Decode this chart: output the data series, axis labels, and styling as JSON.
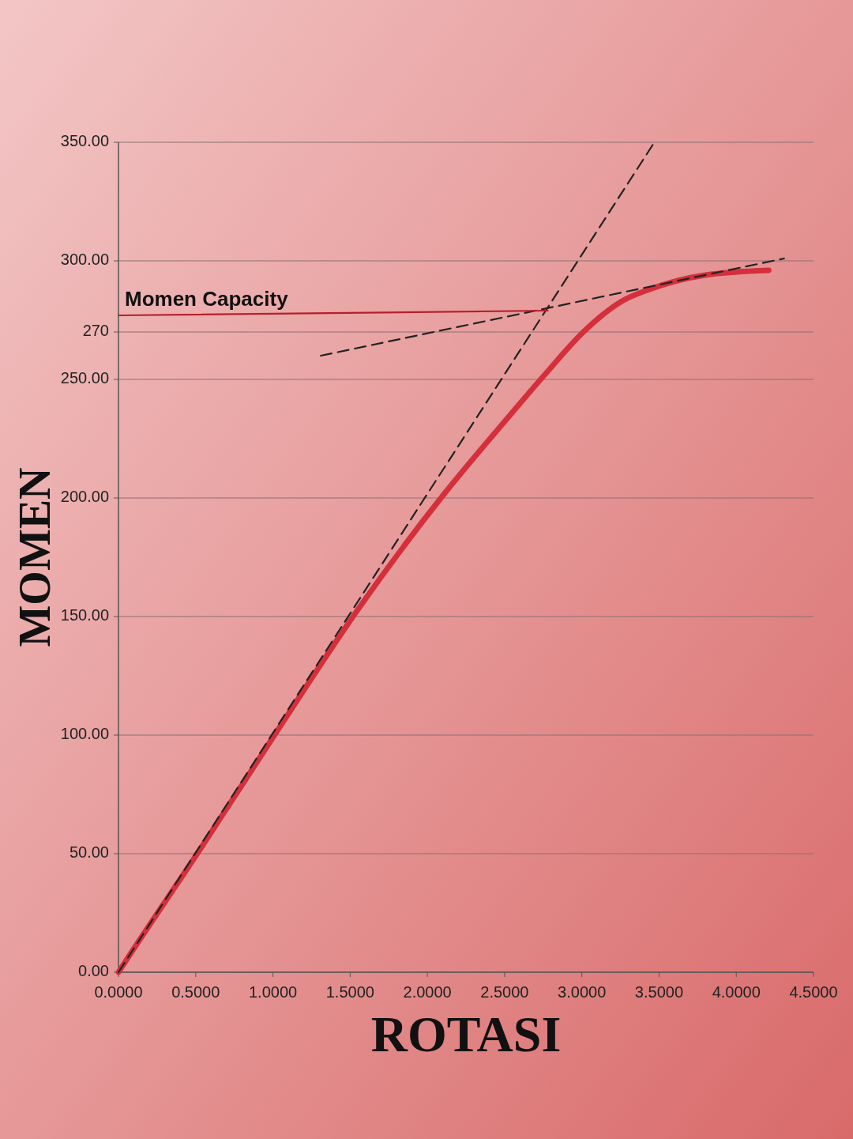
{
  "chart_data": {
    "type": "line",
    "xlabel": "ROTASI",
    "ylabel": "MOMEN",
    "xlim": [
      0,
      4.5
    ],
    "ylim": [
      0,
      350
    ],
    "xticks": [
      {
        "value": 0,
        "label": "0.0000"
      },
      {
        "value": 0.5,
        "label": "0.5000"
      },
      {
        "value": 1,
        "label": "1.0000"
      },
      {
        "value": 1.5,
        "label": "1.5000"
      },
      {
        "value": 2,
        "label": "2.0000"
      },
      {
        "value": 2.5,
        "label": "2.5000"
      },
      {
        "value": 3,
        "label": "3.0000"
      },
      {
        "value": 3.5,
        "label": "3.5000"
      },
      {
        "value": 4,
        "label": "4.0000"
      },
      {
        "value": 4.5,
        "label": "4.5000"
      }
    ],
    "yticks": [
      {
        "value": 0,
        "label": "0.00"
      },
      {
        "value": 50,
        "label": "50.00"
      },
      {
        "value": 100,
        "label": "100.00"
      },
      {
        "value": 150,
        "label": "150.00"
      },
      {
        "value": 200,
        "label": "200.00"
      },
      {
        "value": 250,
        "label": "250.00"
      },
      {
        "value": 270,
        "label": "270"
      },
      {
        "value": 300,
        "label": "300.00"
      },
      {
        "value": 350,
        "label": "350.00"
      }
    ],
    "grid": "y",
    "marker": "none",
    "series": [
      {
        "color": "#d42f3b",
        "line_style": "solid",
        "x": [
          0,
          0.07,
          0.52,
          1.02,
          1.54,
          2.1,
          2.51,
          2.76,
          3.01,
          3.26,
          3.44,
          3.8,
          4.21
        ],
        "values": [
          0,
          7,
          51,
          101,
          152,
          201,
          233,
          252,
          270,
          283,
          288,
          294,
          296
        ]
      },
      {
        "color": "#222222",
        "line_style": "dashed",
        "x": [
          0,
          3.47
        ],
        "values": [
          0,
          350
        ]
      },
      {
        "color": "#222222",
        "line_style": "dashed",
        "x": [
          1.31,
          4.31
        ],
        "values": [
          260,
          301
        ]
      },
      {
        "name": "Momen Capacity",
        "color": "#b5202c",
        "line_style": "solid",
        "x": [
          0,
          2.78
        ],
        "values": [
          277,
          279
        ]
      }
    ]
  }
}
